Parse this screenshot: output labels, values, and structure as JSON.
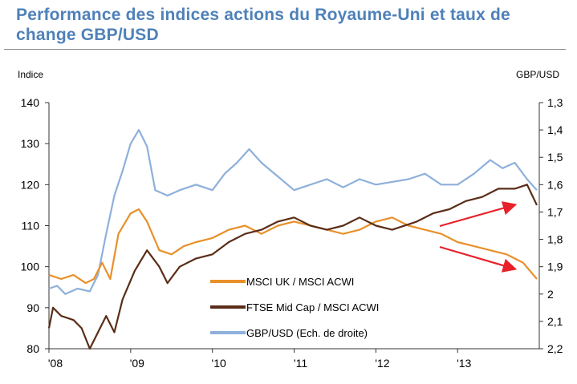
{
  "chart_data": {
    "type": "line",
    "title": "Performance des indices actions du Royaume-Uni et taux de change GBP/USD",
    "ylabel": "Indice",
    "y2label": "GBP/USD",
    "ylim": [
      80,
      140
    ],
    "y2lim": [
      1.3,
      2.2
    ],
    "y2_inverted": true,
    "xlim": [
      2008.0,
      2013.97
    ],
    "yticks": [
      "80",
      "90",
      "100",
      "110",
      "120",
      "130",
      "140"
    ],
    "y2ticks": [
      "1,3",
      "1,4",
      "1,5",
      "1,6",
      "1,7",
      "1,8",
      "1,9",
      "2",
      "2,1",
      "2,2"
    ],
    "xticks": [
      {
        "label": "'08",
        "x": 2008
      },
      {
        "label": "'09",
        "x": 2009
      },
      {
        "label": "'10",
        "x": 2010
      },
      {
        "label": "'11",
        "x": 2011
      },
      {
        "label": "'12",
        "x": 2012
      },
      {
        "label": "'13",
        "x": 2013
      }
    ],
    "legend_position": "bottom-center",
    "series": [
      {
        "name": "MSCI UK / MSCI ACWI",
        "axis": "left",
        "color": "#e8902a",
        "x": [
          2008.0,
          2008.15,
          2008.3,
          2008.45,
          2008.55,
          2008.65,
          2008.75,
          2008.85,
          2009.0,
          2009.1,
          2009.2,
          2009.35,
          2009.5,
          2009.65,
          2009.8,
          2010.0,
          2010.2,
          2010.4,
          2010.6,
          2010.8,
          2011.0,
          2011.2,
          2011.4,
          2011.6,
          2011.8,
          2012.0,
          2012.2,
          2012.4,
          2012.6,
          2012.8,
          2013.0,
          2013.2,
          2013.4,
          2013.6,
          2013.8,
          2013.97
        ],
        "y": [
          98,
          97,
          98,
          96,
          97,
          101,
          97,
          108,
          113,
          114,
          111,
          104,
          103,
          105,
          106,
          107,
          109,
          110,
          108,
          110,
          111,
          110,
          109,
          108,
          109,
          111,
          112,
          110,
          109,
          108,
          106,
          105,
          104,
          103,
          101,
          97
        ]
      },
      {
        "name": "FTSE Mid Cap / MSCI ACWI",
        "axis": "left",
        "color": "#5a2d18",
        "x": [
          2008.0,
          2008.05,
          2008.15,
          2008.3,
          2008.4,
          2008.5,
          2008.6,
          2008.7,
          2008.8,
          2008.9,
          2009.05,
          2009.2,
          2009.35,
          2009.45,
          2009.6,
          2009.8,
          2010.0,
          2010.2,
          2010.4,
          2010.6,
          2010.8,
          2011.0,
          2011.2,
          2011.4,
          2011.6,
          2011.8,
          2012.0,
          2012.2,
          2012.5,
          2012.7,
          2012.9,
          2013.1,
          2013.3,
          2013.5,
          2013.7,
          2013.85,
          2013.97
        ],
        "y": [
          85,
          90,
          88,
          87,
          85,
          80,
          84,
          88,
          84,
          92,
          99,
          104,
          100,
          96,
          100,
          102,
          103,
          106,
          108,
          109,
          111,
          112,
          110,
          109,
          110,
          112,
          110,
          109,
          111,
          113,
          114,
          116,
          117,
          119,
          119,
          120,
          115
        ]
      },
      {
        "name": "GBP/USD (Ech. de droite)",
        "axis": "right",
        "color": "#8eb0db",
        "x": [
          2008.0,
          2008.1,
          2008.2,
          2008.35,
          2008.5,
          2008.6,
          2008.7,
          2008.8,
          2008.9,
          2009.0,
          2009.1,
          2009.2,
          2009.3,
          2009.45,
          2009.6,
          2009.8,
          2010.0,
          2010.15,
          2010.3,
          2010.45,
          2010.6,
          2010.8,
          2011.0,
          2011.2,
          2011.4,
          2011.6,
          2011.8,
          2012.0,
          2012.2,
          2012.4,
          2012.6,
          2012.8,
          2013.0,
          2013.2,
          2013.4,
          2013.55,
          2013.7,
          2013.85,
          2013.97
        ],
        "y": [
          1.98,
          1.97,
          2.0,
          1.98,
          1.99,
          1.93,
          1.78,
          1.64,
          1.55,
          1.45,
          1.4,
          1.46,
          1.62,
          1.64,
          1.62,
          1.6,
          1.62,
          1.56,
          1.52,
          1.47,
          1.52,
          1.57,
          1.62,
          1.6,
          1.58,
          1.61,
          1.58,
          1.6,
          1.59,
          1.58,
          1.56,
          1.6,
          1.6,
          1.56,
          1.51,
          1.54,
          1.52,
          1.58,
          1.62
        ]
      }
    ]
  }
}
